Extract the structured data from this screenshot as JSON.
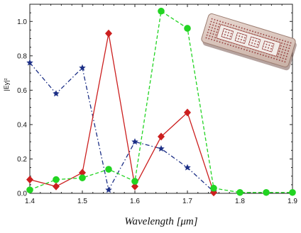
{
  "chart_data": {
    "type": "line",
    "title": "",
    "xlabel": "Wavelength [μm]",
    "ylabel": "|Ey|²",
    "xlim": [
      1.4,
      1.9
    ],
    "ylim": [
      0,
      1.1
    ],
    "x_ticks": [
      "1.4",
      "1.5",
      "1.6",
      "1.7",
      "1.8",
      "1.9"
    ],
    "y_ticks": [
      "0.0",
      "0.2",
      "0.4",
      "0.6",
      "0.8",
      "1.0"
    ],
    "grid": false,
    "legend": "none",
    "series": [
      {
        "color": "#1c2f86",
        "line_style": "dash-dot",
        "marker": "star",
        "x": [
          1.4,
          1.45,
          1.5,
          1.55,
          1.6,
          1.65,
          1.7,
          1.75
        ],
        "y": [
          0.76,
          0.58,
          0.73,
          0.02,
          0.3,
          0.26,
          0.15,
          0.01
        ]
      },
      {
        "color": "#cc1f1f",
        "line_style": "solid",
        "marker": "diamond",
        "x": [
          1.4,
          1.45,
          1.5,
          1.55,
          1.6,
          1.65,
          1.7,
          1.75
        ],
        "y": [
          0.08,
          0.04,
          0.12,
          0.93,
          0.04,
          0.33,
          0.47,
          0.005
        ]
      },
      {
        "color": "#22d422",
        "line_style": "dashed",
        "marker": "circle",
        "x": [
          1.4,
          1.45,
          1.5,
          1.55,
          1.6,
          1.65,
          1.7,
          1.75,
          1.8,
          1.85,
          1.9
        ],
        "y": [
          0.02,
          0.08,
          0.09,
          0.14,
          0.07,
          1.06,
          0.96,
          0.03,
          0.005,
          0.005,
          0.005
        ]
      }
    ]
  },
  "inset": {
    "icon": "nanostructure-device-icon"
  }
}
